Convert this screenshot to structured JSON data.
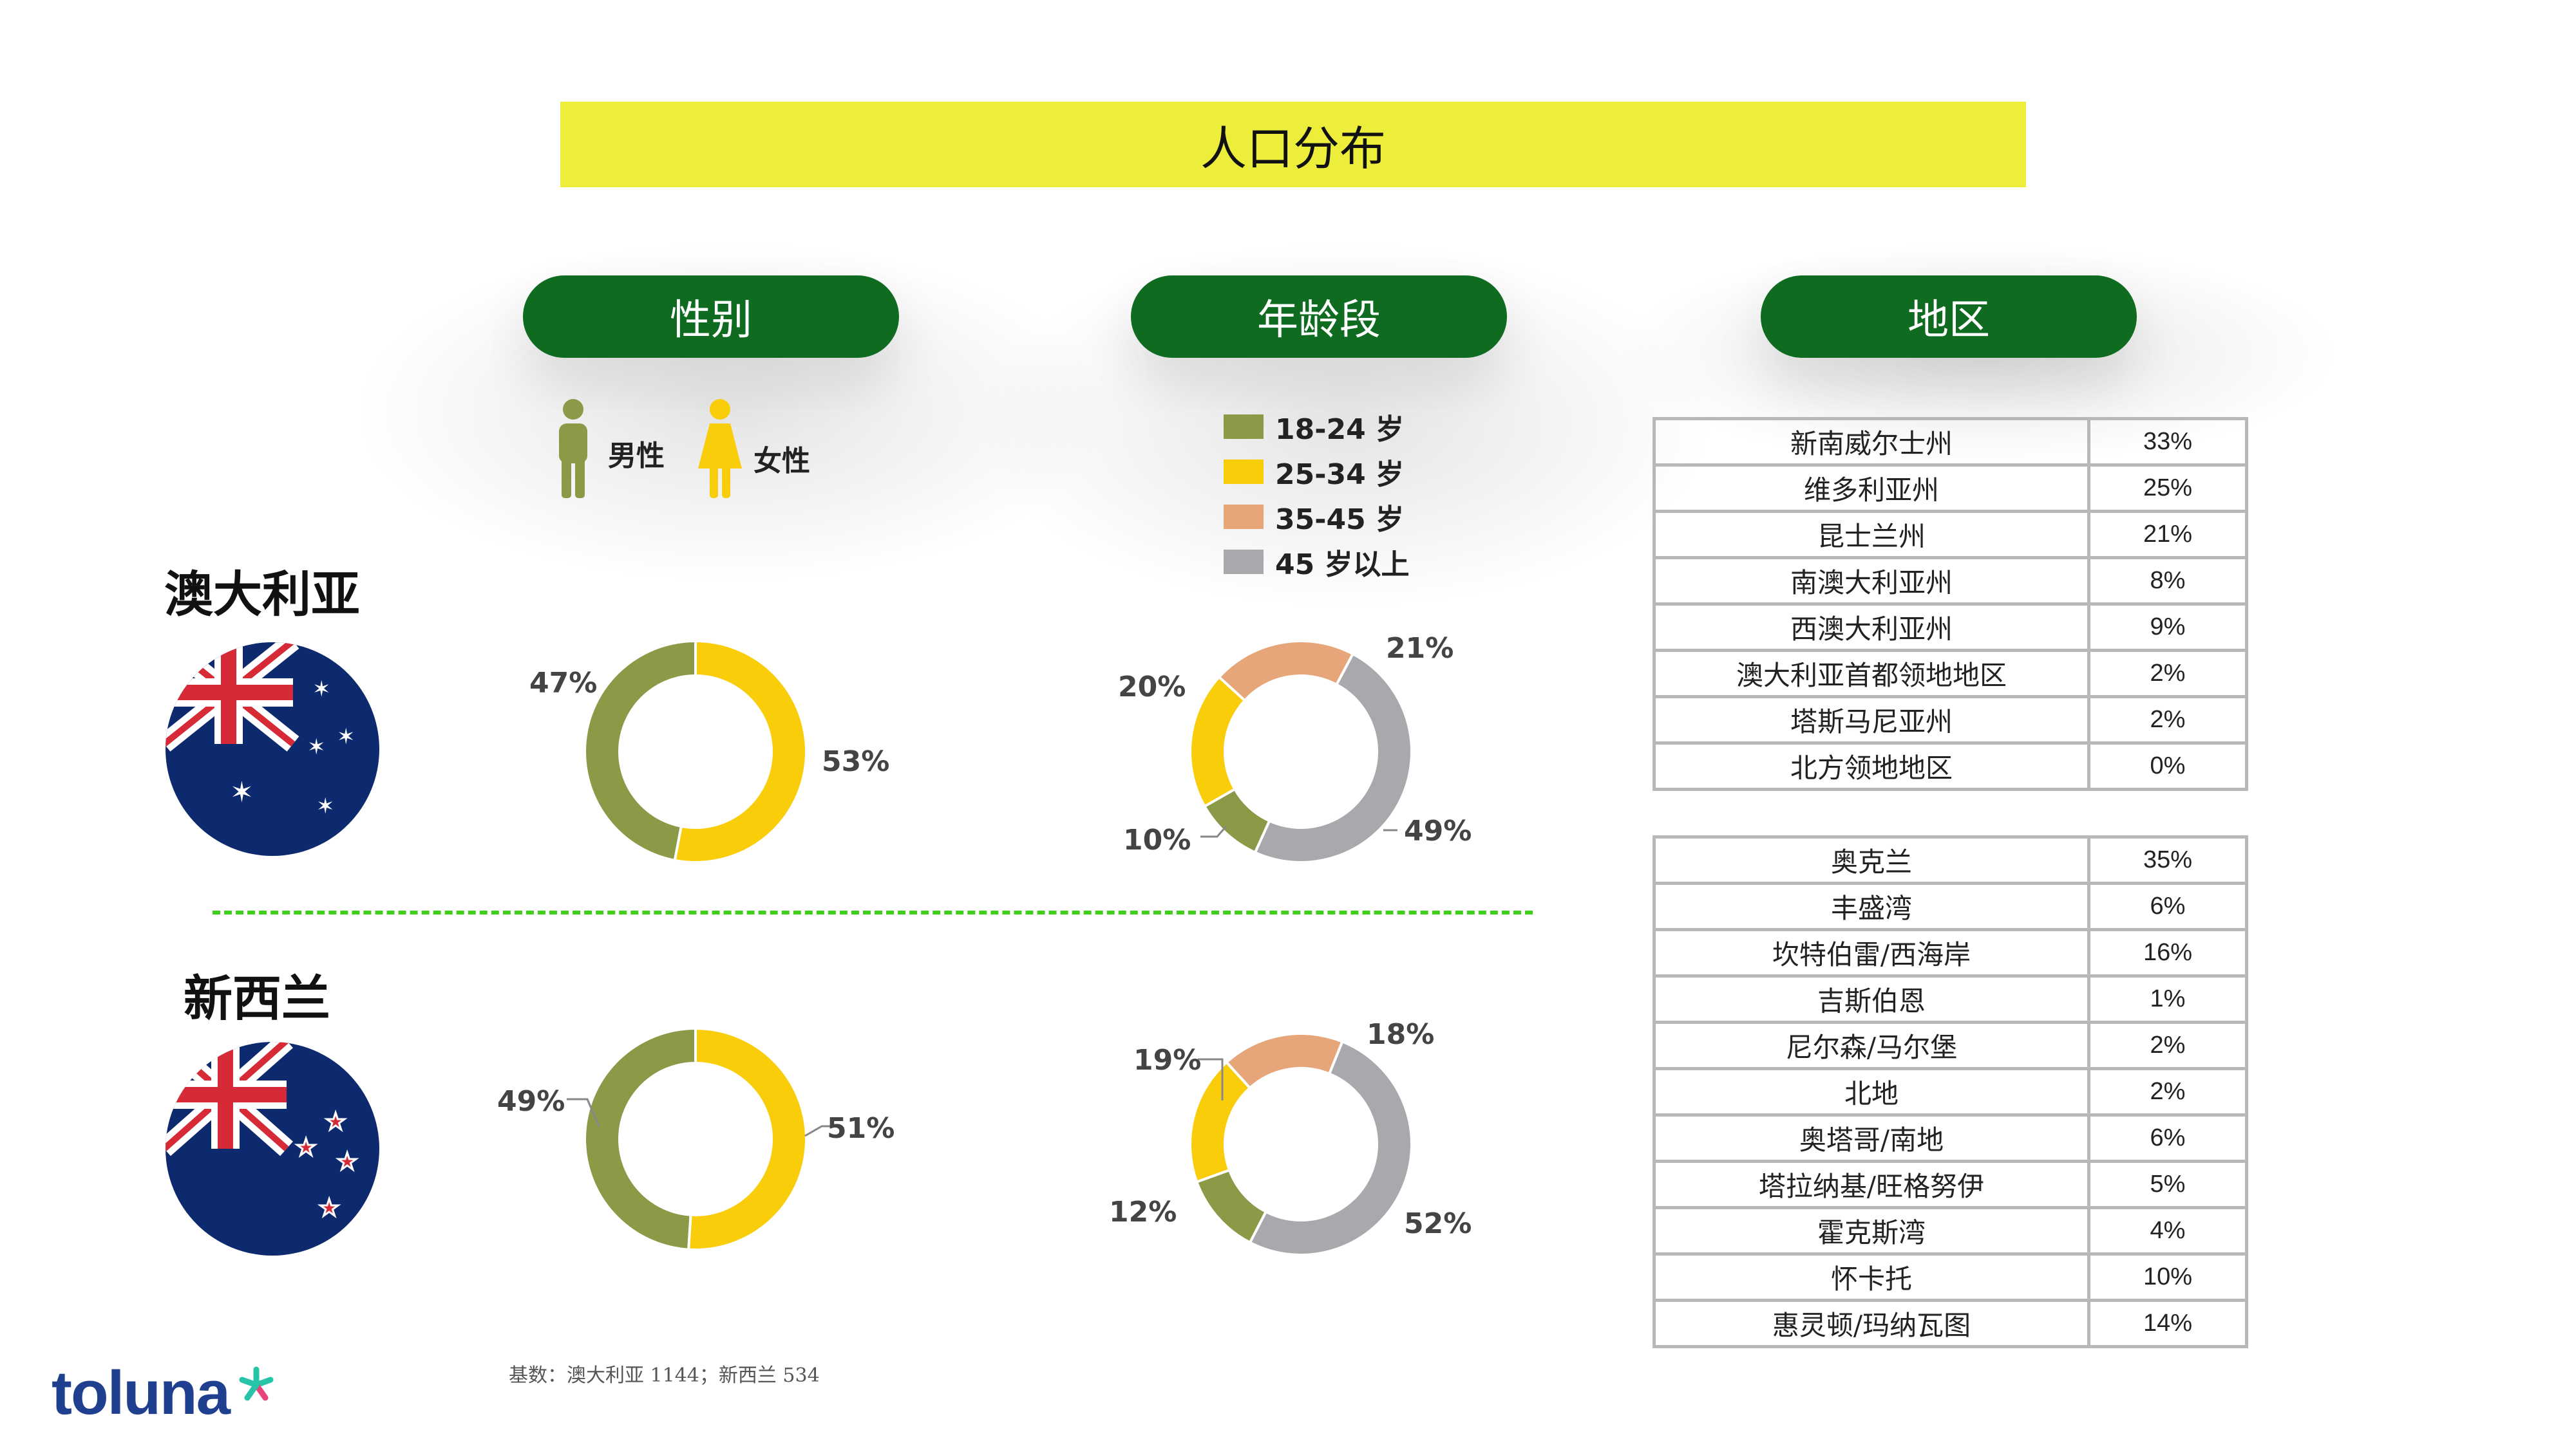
{
  "title": "人口分布",
  "headers": {
    "gender": "性别",
    "age": "年龄段",
    "region": "地区"
  },
  "gender_legend": {
    "male": "男性",
    "female": "女性"
  },
  "age_legend": [
    "18-24 岁",
    "25-34 岁",
    "35-45 岁",
    "45 岁以上"
  ],
  "countries": {
    "au": "澳大利亚",
    "nz": "新西兰"
  },
  "colors": {
    "olive": "#8b9a47",
    "yellow": "#f9cd0a",
    "salmon": "#e6a67a",
    "gray": "#a7a9ac",
    "green_pill": "#0e6b1f",
    "title_yellow": "#edee3c",
    "navy": "#0d2a6e"
  },
  "chart_data": [
    {
      "type": "pie",
      "id": "au_gender",
      "labels": [
        "男性",
        "女性"
      ],
      "values": [
        47,
        53
      ],
      "value_labels": [
        "47%",
        "53%"
      ]
    },
    {
      "type": "pie",
      "id": "au_age",
      "labels": [
        "18-24 岁",
        "25-34 岁",
        "35-45 岁",
        "45 岁以上"
      ],
      "values": [
        10,
        20,
        21,
        49
      ],
      "value_labels": [
        "10%",
        "20%",
        "21%",
        "49%"
      ]
    },
    {
      "type": "pie",
      "id": "nz_gender",
      "labels": [
        "男性",
        "女性"
      ],
      "values": [
        49,
        51
      ],
      "value_labels": [
        "49%",
        "51%"
      ]
    },
    {
      "type": "pie",
      "id": "nz_age",
      "labels": [
        "18-24 岁",
        "25-34 岁",
        "35-45 岁",
        "45 岁以上"
      ],
      "values": [
        12,
        19,
        18,
        52
      ],
      "value_labels": [
        "12%",
        "19%",
        "18%",
        "52%"
      ]
    }
  ],
  "au_regions": [
    {
      "name": "新南威尔士州",
      "value": "33%"
    },
    {
      "name": "维多利亚州",
      "value": "25%"
    },
    {
      "name": "昆士兰州",
      "value": "21%"
    },
    {
      "name": "南澳大利亚州",
      "value": "8%"
    },
    {
      "name": "西澳大利亚州",
      "value": "9%"
    },
    {
      "name": "澳大利亚首都领地地区",
      "value": "2%"
    },
    {
      "name": "塔斯马尼亚州",
      "value": "2%"
    },
    {
      "name": "北方领地地区",
      "value": "0%"
    }
  ],
  "nz_regions": [
    {
      "name": "奥克兰",
      "value": "35%"
    },
    {
      "name": "丰盛湾",
      "value": "6%"
    },
    {
      "name": "坎特伯雷/西海岸",
      "value": "16%"
    },
    {
      "name": "吉斯伯恩",
      "value": "1%"
    },
    {
      "name": "尼尔森/马尔堡",
      "value": "2%"
    },
    {
      "name": "北地",
      "value": "2%"
    },
    {
      "name": "奥塔哥/南地",
      "value": "6%"
    },
    {
      "name": "塔拉纳基/旺格努伊",
      "value": "5%"
    },
    {
      "name": "霍克斯湾",
      "value": "4%"
    },
    {
      "name": "怀卡托",
      "value": "10%"
    },
    {
      "name": "惠灵顿/玛纳瓦图",
      "value": "14%"
    }
  ],
  "footnote": "基数：澳大利亚 1144；新西兰 534",
  "logo": "toluna"
}
